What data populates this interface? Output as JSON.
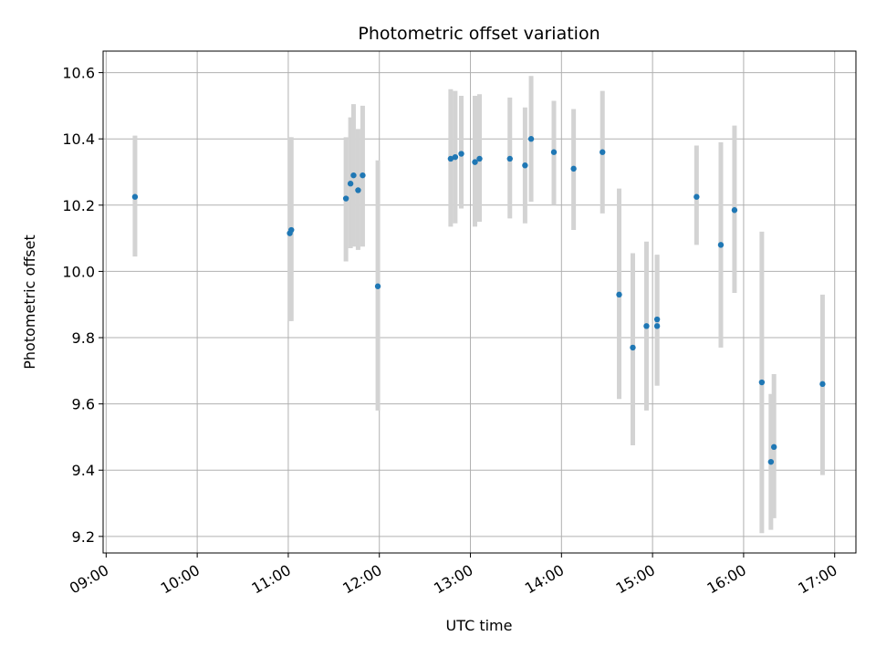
{
  "chart_data": {
    "type": "scatter",
    "title": "Photometric offset variation",
    "xlabel": "UTC time",
    "ylabel": "Photometric offset",
    "xlim": [
      "08:58",
      "17:14"
    ],
    "ylim": [
      9.15,
      10.665
    ],
    "x_ticks": [
      "09:00",
      "10:00",
      "11:00",
      "12:00",
      "13:00",
      "14:00",
      "15:00",
      "16:00",
      "17:00"
    ],
    "y_ticks": [
      9.2,
      9.4,
      9.6,
      9.8,
      10.0,
      10.2,
      10.4,
      10.6
    ],
    "y_tick_labels": [
      "9.2",
      "9.4",
      "9.6",
      "9.8",
      "10.0",
      "10.2",
      "10.4",
      "10.6"
    ],
    "grid": true,
    "marker_color": "#1f77b4",
    "errorbar_color": "#d3d3d3",
    "series": [
      {
        "points": [
          {
            "x": "09:19",
            "y": 10.225,
            "lo": 10.045,
            "hi": 10.41
          },
          {
            "x": "11:01",
            "y": 10.115,
            "lo": 9.85,
            "hi": 10.405
          },
          {
            "x": "11:02",
            "y": 10.125,
            "lo": 9.85,
            "hi": 10.405
          },
          {
            "x": "11:38",
            "y": 10.22,
            "lo": 10.03,
            "hi": 10.405
          },
          {
            "x": "11:41",
            "y": 10.265,
            "lo": 10.07,
            "hi": 10.465
          },
          {
            "x": "11:43",
            "y": 10.29,
            "lo": 10.075,
            "hi": 10.505
          },
          {
            "x": "11:46",
            "y": 10.245,
            "lo": 10.065,
            "hi": 10.43
          },
          {
            "x": "11:49",
            "y": 10.29,
            "lo": 10.075,
            "hi": 10.5
          },
          {
            "x": "11:59",
            "y": 9.955,
            "lo": 9.58,
            "hi": 10.335
          },
          {
            "x": "12:47",
            "y": 10.34,
            "lo": 10.135,
            "hi": 10.55
          },
          {
            "x": "12:50",
            "y": 10.345,
            "lo": 10.145,
            "hi": 10.545
          },
          {
            "x": "12:54",
            "y": 10.355,
            "lo": 10.19,
            "hi": 10.53
          },
          {
            "x": "13:03",
            "y": 10.33,
            "lo": 10.135,
            "hi": 10.53
          },
          {
            "x": "13:06",
            "y": 10.34,
            "lo": 10.15,
            "hi": 10.535
          },
          {
            "x": "13:26",
            "y": 10.34,
            "lo": 10.16,
            "hi": 10.525
          },
          {
            "x": "13:36",
            "y": 10.32,
            "lo": 10.145,
            "hi": 10.495
          },
          {
            "x": "13:40",
            "y": 10.4,
            "lo": 10.21,
            "hi": 10.59
          },
          {
            "x": "13:55",
            "y": 10.36,
            "lo": 10.2,
            "hi": 10.515
          },
          {
            "x": "14:08",
            "y": 10.31,
            "lo": 10.125,
            "hi": 10.49
          },
          {
            "x": "14:27",
            "y": 10.36,
            "lo": 10.175,
            "hi": 10.545
          },
          {
            "x": "14:38",
            "y": 9.93,
            "lo": 9.615,
            "hi": 10.25
          },
          {
            "x": "14:47",
            "y": 9.77,
            "lo": 9.475,
            "hi": 10.055
          },
          {
            "x": "14:56",
            "y": 9.835,
            "lo": 9.58,
            "hi": 10.09
          },
          {
            "x": "15:03",
            "y": 9.835,
            "lo": 9.655,
            "hi": 10.05
          },
          {
            "x": "15:03",
            "y": 9.855,
            "lo": 9.655,
            "hi": 10.05
          },
          {
            "x": "15:29",
            "y": 10.225,
            "lo": 10.08,
            "hi": 10.38
          },
          {
            "x": "15:45",
            "y": 10.08,
            "lo": 9.77,
            "hi": 10.39
          },
          {
            "x": "15:54",
            "y": 10.185,
            "lo": 9.935,
            "hi": 10.44
          },
          {
            "x": "16:12",
            "y": 9.665,
            "lo": 9.21,
            "hi": 10.12
          },
          {
            "x": "16:18",
            "y": 9.425,
            "lo": 9.22,
            "hi": 9.63
          },
          {
            "x": "16:20",
            "y": 9.47,
            "lo": 9.255,
            "hi": 9.69
          },
          {
            "x": "16:52",
            "y": 9.66,
            "lo": 9.385,
            "hi": 9.93
          }
        ]
      }
    ]
  }
}
